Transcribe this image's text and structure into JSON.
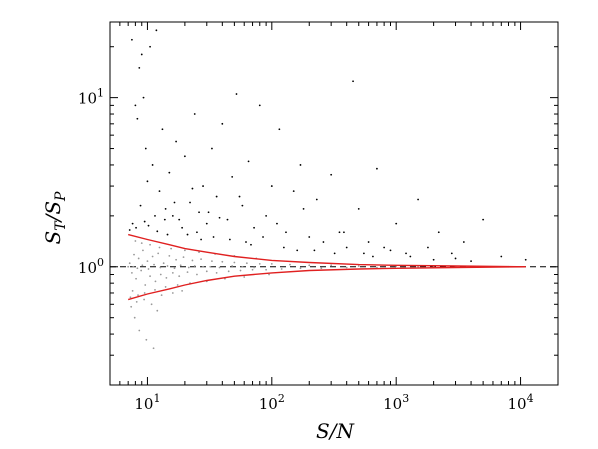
{
  "chart_data": {
    "type": "scatter",
    "title": "",
    "xlabel": "S/N",
    "ylabel": "S_T/S_P",
    "xscale": "log",
    "yscale": "log",
    "xlim": [
      5,
      20000
    ],
    "ylim": [
      0.2,
      28
    ],
    "grid": false,
    "legend": "none",
    "x_ticks": [
      {
        "value": 10,
        "base": "10",
        "exp": "1"
      },
      {
        "value": 100,
        "base": "10",
        "exp": "2"
      },
      {
        "value": 1000,
        "base": "10",
        "exp": "3"
      },
      {
        "value": 10000,
        "base": "10",
        "exp": "4"
      }
    ],
    "y_ticks": [
      {
        "value": 1,
        "base": "10",
        "exp": "0"
      },
      {
        "value": 10,
        "base": "10",
        "exp": "1"
      }
    ],
    "reference_line": {
      "y": 1,
      "style": "dashed",
      "color": "#000000"
    },
    "series": [
      {
        "color": "#999999",
        "marker": "point",
        "points": [
          [
            7.2,
            1.05
          ],
          [
            7.5,
            0.92
          ],
          [
            7.8,
            1.18
          ],
          [
            8.1,
            0.85
          ],
          [
            8.5,
            1.12
          ],
          [
            8.9,
            0.95
          ],
          [
            9.2,
            1.25
          ],
          [
            9.6,
            0.78
          ],
          [
            10.0,
            1.08
          ],
          [
            10.5,
            0.88
          ],
          [
            11.0,
            1.15
          ],
          [
            11.6,
            0.82
          ],
          [
            12.2,
            1.2
          ],
          [
            12.8,
            0.9
          ],
          [
            13.5,
            1.05
          ],
          [
            14.2,
            0.86
          ],
          [
            15.0,
            1.16
          ],
          [
            16.0,
            0.92
          ],
          [
            17.0,
            1.1
          ],
          [
            18.0,
            0.88
          ],
          [
            19.5,
            1.14
          ],
          [
            21.0,
            0.93
          ],
          [
            23.0,
            1.09
          ],
          [
            25.0,
            0.9
          ],
          [
            27.0,
            1.11
          ],
          [
            30.0,
            0.94
          ],
          [
            33.0,
            1.08
          ],
          [
            36.0,
            0.92
          ],
          [
            40.0,
            1.07
          ],
          [
            45.0,
            0.94
          ],
          [
            50.0,
            1.06
          ],
          [
            56.0,
            0.95
          ],
          [
            63.0,
            1.05
          ],
          [
            70.0,
            0.96
          ],
          [
            80.0,
            1.04
          ],
          [
            90.0,
            0.96
          ],
          [
            100.0,
            1.04
          ],
          [
            120.0,
            0.97
          ],
          [
            140.0,
            1.03
          ],
          [
            170.0,
            0.98
          ],
          [
            200.0,
            1.02
          ],
          [
            250.0,
            0.98
          ],
          [
            300.0,
            1.02
          ],
          [
            400.0,
            0.99
          ],
          [
            500.0,
            1.01
          ],
          [
            700.0,
            0.99
          ],
          [
            1000.0,
            1.01
          ],
          [
            1500.0,
            1.0
          ],
          [
            2000.0,
            1.0
          ],
          [
            3000.0,
            1.0
          ],
          [
            5000.0,
            1.0
          ],
          [
            8000.0,
            1.0
          ],
          [
            7.3,
            0.66
          ],
          [
            7.6,
            0.72
          ],
          [
            8.0,
            1.42
          ],
          [
            8.4,
            0.68
          ],
          [
            9.0,
            1.38
          ],
          [
            9.5,
            0.7
          ],
          [
            10.5,
            1.35
          ],
          [
            11.5,
            0.73
          ],
          [
            12.5,
            1.3
          ],
          [
            14.0,
            0.76
          ],
          [
            15.5,
            1.28
          ],
          [
            17.5,
            0.78
          ],
          [
            20.0,
            1.25
          ],
          [
            22.0,
            0.8
          ],
          [
            26.0,
            1.22
          ],
          [
            30.0,
            0.82
          ],
          [
            35.0,
            1.19
          ],
          [
            42.0,
            0.85
          ],
          [
            50.0,
            1.16
          ],
          [
            60.0,
            0.87
          ],
          [
            75.0,
            1.12
          ],
          [
            95.0,
            0.9
          ],
          [
            7.0,
            1.0
          ],
          [
            7.7,
            1.0
          ],
          [
            8.3,
            0.98
          ],
          [
            9.1,
            1.02
          ],
          [
            10.2,
            0.97
          ],
          [
            11.3,
            1.03
          ],
          [
            12.7,
            0.99
          ],
          [
            14.5,
            1.01
          ],
          [
            16.5,
            0.98
          ],
          [
            18.5,
            1.02
          ],
          [
            21.5,
            0.99
          ],
          [
            24.0,
            1.01
          ],
          [
            28.0,
            1.0
          ],
          [
            32.0,
            1.0
          ],
          [
            38.0,
            0.99
          ],
          [
            48.0,
            1.01
          ],
          [
            58.0,
            1.0
          ],
          [
            72.0,
            0.99
          ],
          [
            7.4,
            0.58
          ],
          [
            8.2,
            0.62
          ],
          [
            9.4,
            0.64
          ],
          [
            10.8,
            0.6
          ],
          [
            13.0,
            0.68
          ],
          [
            16.0,
            0.7
          ],
          [
            19.0,
            0.72
          ],
          [
            8.6,
            0.42
          ],
          [
            9.8,
            0.37
          ],
          [
            11.2,
            0.33
          ],
          [
            12.0,
            0.55
          ],
          [
            7.9,
            0.5
          ]
        ]
      },
      {
        "color": "#000000",
        "marker": "point",
        "points": [
          [
            7.5,
            22.0
          ],
          [
            8.0,
            9.0
          ],
          [
            8.3,
            7.5
          ],
          [
            8.6,
            15.0
          ],
          [
            9.0,
            18.0
          ],
          [
            9.3,
            10.0
          ],
          [
            9.7,
            5.0
          ],
          [
            10.0,
            3.2
          ],
          [
            10.5,
            20.0
          ],
          [
            11.0,
            4.0
          ],
          [
            11.8,
            25.0
          ],
          [
            12.5,
            2.8
          ],
          [
            13.2,
            6.5
          ],
          [
            14.0,
            2.2
          ],
          [
            15.0,
            3.6
          ],
          [
            16.0,
            2.0
          ],
          [
            17.0,
            5.5
          ],
          [
            18.0,
            1.9
          ],
          [
            20.0,
            4.5
          ],
          [
            22.0,
            2.4
          ],
          [
            24.0,
            8.0
          ],
          [
            26.0,
            2.1
          ],
          [
            28.0,
            3.0
          ],
          [
            30.0,
            1.8
          ],
          [
            33.0,
            5.0
          ],
          [
            36.0,
            2.6
          ],
          [
            40.0,
            7.0
          ],
          [
            44.0,
            1.9
          ],
          [
            48.0,
            3.4
          ],
          [
            52.0,
            10.5
          ],
          [
            58.0,
            2.3
          ],
          [
            65.0,
            4.2
          ],
          [
            72.0,
            1.7
          ],
          [
            80.0,
            9.0
          ],
          [
            90.0,
            2.0
          ],
          [
            100.0,
            3.0
          ],
          [
            115.0,
            6.5
          ],
          [
            130.0,
            1.6
          ],
          [
            150.0,
            2.8
          ],
          [
            170.0,
            4.0
          ],
          [
            200.0,
            1.5
          ],
          [
            230.0,
            2.5
          ],
          [
            260.0,
            1.4
          ],
          [
            300.0,
            3.5
          ],
          [
            350.0,
            1.6
          ],
          [
            400.0,
            1.3
          ],
          [
            450.0,
            12.5
          ],
          [
            500.0,
            2.2
          ],
          [
            600.0,
            1.4
          ],
          [
            700.0,
            3.8
          ],
          [
            800.0,
            1.3
          ],
          [
            1000.0,
            1.8
          ],
          [
            1200.0,
            1.2
          ],
          [
            1500.0,
            2.5
          ],
          [
            1800.0,
            1.3
          ],
          [
            2200.0,
            1.6
          ],
          [
            2800.0,
            1.2
          ],
          [
            3500.0,
            1.4
          ],
          [
            5000.0,
            1.9
          ],
          [
            7000.0,
            1.15
          ],
          [
            11000.0,
            1.1
          ],
          [
            7.2,
            1.65
          ],
          [
            7.6,
            1.8
          ],
          [
            8.1,
            1.7
          ],
          [
            8.8,
            2.3
          ],
          [
            9.5,
            1.85
          ],
          [
            10.2,
            1.75
          ],
          [
            11.5,
            2.0
          ],
          [
            12.0,
            1.62
          ],
          [
            13.8,
            1.9
          ],
          [
            14.5,
            1.55
          ],
          [
            16.5,
            2.4
          ],
          [
            19.0,
            1.7
          ],
          [
            21.0,
            1.55
          ],
          [
            23.0,
            2.9
          ],
          [
            25.0,
            1.6
          ],
          [
            27.0,
            1.45
          ],
          [
            31.0,
            2.1
          ],
          [
            34.0,
            1.5
          ],
          [
            38.0,
            1.95
          ],
          [
            46.0,
            1.45
          ],
          [
            55.0,
            2.6
          ],
          [
            62.0,
            1.4
          ],
          [
            68.0,
            1.35
          ],
          [
            85.0,
            1.5
          ],
          [
            110.0,
            1.8
          ],
          [
            125.0,
            1.3
          ],
          [
            160.0,
            1.25
          ],
          [
            180.0,
            2.2
          ],
          [
            220.0,
            1.25
          ],
          [
            320.0,
            1.2
          ],
          [
            380.0,
            1.6
          ],
          [
            550.0,
            1.2
          ],
          [
            650.0,
            1.15
          ],
          [
            900.0,
            1.25
          ],
          [
            1300.0,
            1.15
          ],
          [
            2000.0,
            1.1
          ],
          [
            3000.0,
            1.12
          ],
          [
            4000.0,
            1.08
          ]
        ]
      }
    ],
    "envelope_lines": {
      "color": "#e02020",
      "upper": [
        [
          7,
          1.55
        ],
        [
          10,
          1.45
        ],
        [
          15,
          1.35
        ],
        [
          20,
          1.28
        ],
        [
          30,
          1.22
        ],
        [
          50,
          1.15
        ],
        [
          100,
          1.09
        ],
        [
          200,
          1.06
        ],
        [
          500,
          1.03
        ],
        [
          1000,
          1.02
        ],
        [
          3000,
          1.01
        ],
        [
          11000,
          1.0
        ]
      ],
      "lower": [
        [
          7,
          0.64
        ],
        [
          10,
          0.69
        ],
        [
          15,
          0.74
        ],
        [
          20,
          0.78
        ],
        [
          30,
          0.83
        ],
        [
          50,
          0.88
        ],
        [
          100,
          0.92
        ],
        [
          200,
          0.95
        ],
        [
          500,
          0.97
        ],
        [
          1000,
          0.98
        ],
        [
          3000,
          0.99
        ],
        [
          11000,
          1.0
        ]
      ]
    }
  }
}
